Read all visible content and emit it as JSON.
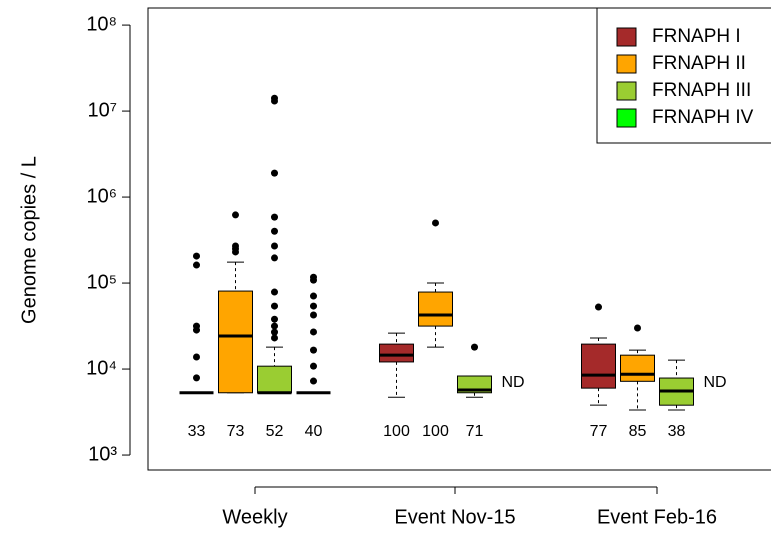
{
  "chart_data": {
    "type": "box",
    "y_label": "Genome copies / L",
    "log_scale": true,
    "ylim": [
      670,
      158000000
    ],
    "yticks": [
      {
        "value": 1000,
        "label": "10³"
      },
      {
        "value": 10000,
        "label": "10⁴"
      },
      {
        "value": 100000,
        "label": "10⁵"
      },
      {
        "value": 1000000,
        "label": "10⁶"
      },
      {
        "value": 10000000,
        "label": "10⁷"
      },
      {
        "value": 100000000,
        "label": "10⁸"
      }
    ],
    "categories": [
      "Weekly",
      "Event Nov-15",
      "Event Feb-16"
    ],
    "legend_position": "top-right",
    "series": [
      {
        "name": "FRNAPH I",
        "color": "#a52a2a",
        "n": [
          33,
          100,
          77
        ],
        "boxes": [
          {
            "min": 5300,
            "q1": 5300,
            "median": 5300,
            "q3": 5300,
            "max": 5300,
            "outliers": [
              7900,
              13800,
              28400,
              31600,
              162000,
              206000
            ]
          },
          {
            "min": 4700,
            "q1": 12100,
            "median": 14500,
            "q3": 19500,
            "max": 26200,
            "outliers": []
          },
          {
            "min": 3800,
            "q1": 6000,
            "median": 8500,
            "q3": 19500,
            "max": 23000,
            "outliers": [
              52600
            ]
          }
        ]
      },
      {
        "name": "FRNAPH II",
        "color": "#ffa500",
        "n": [
          73,
          100,
          85
        ],
        "boxes": [
          {
            "min": 5300,
            "q1": 5300,
            "median": 24200,
            "q3": 80700,
            "max": 175000,
            "outliers": [
              230000,
              250000,
              270000,
              620000
            ]
          },
          {
            "min": 18000,
            "q1": 31600,
            "median": 42500,
            "q3": 78600,
            "max": 100000,
            "outliers": [
              500000
            ]
          },
          {
            "min": 3340,
            "q1": 7200,
            "median": 8700,
            "q3": 14500,
            "max": 16600,
            "outliers": [
              30000
            ]
          }
        ]
      },
      {
        "name": "FRNAPH III",
        "color": "#9acd32",
        "n": [
          52,
          71,
          38
        ],
        "boxes": [
          {
            "min": 5300,
            "q1": 5300,
            "median": 5300,
            "q3": 10800,
            "max": 18000,
            "outliers": [
              23000,
              26900,
              31600,
              38000,
              54000,
              78600,
              196000,
              270000,
              400000,
              585000,
              1900000,
              13100000,
              14100000
            ]
          },
          {
            "min": 4700,
            "q1": 5300,
            "median": 5700,
            "q3": 8300,
            "max": 8300,
            "outliers": [
              18000
            ]
          },
          {
            "min": 3340,
            "q1": 3800,
            "median": 5550,
            "q3": 7860,
            "max": 12700,
            "outliers": []
          }
        ]
      },
      {
        "name": "FRNAPH IV",
        "color": "#00ff00",
        "n": [
          40,
          "ND",
          "ND"
        ],
        "boxes": [
          {
            "min": 5300,
            "q1": 5300,
            "median": 5300,
            "q3": 5300,
            "max": 5300,
            "outliers": [
              7250,
              10800,
              16600,
              27000,
              42500,
              54000,
              70600,
              108000,
              117000
            ]
          },
          null,
          null
        ]
      }
    ]
  }
}
